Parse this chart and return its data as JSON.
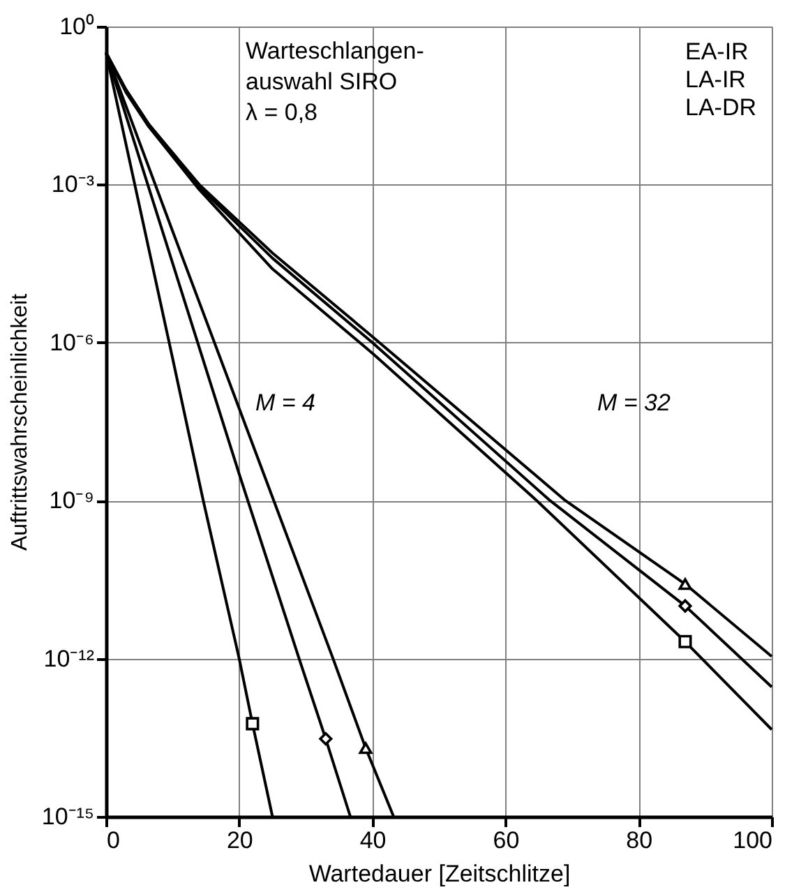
{
  "chart_data": {
    "type": "line",
    "xlabel": "Wartedauer  [Zeitschlitze]",
    "ylabel": "Auftrittswahrscheinlichkeit",
    "log": "y",
    "grid": true,
    "legend": "top right",
    "xlim": [
      0,
      100
    ],
    "xticks": [
      0,
      20,
      40,
      60,
      80,
      100
    ],
    "ylim": [
      1e-15,
      1
    ],
    "yticks": [
      {
        "value": 1,
        "label": "10⁰"
      },
      {
        "value": 0.001,
        "label": "10⁻³"
      },
      {
        "value": 1e-06,
        "label": "10⁻⁶"
      },
      {
        "value": 1e-09,
        "label": "10⁻⁹"
      },
      {
        "value": 1e-12,
        "label": "10⁻¹²"
      },
      {
        "value": 1e-15,
        "label": "10⁻¹⁵"
      }
    ],
    "series": [
      {
        "color": "#000000",
        "x": [
          0,
          10,
          20,
          34.1,
          39,
          43.2
        ],
        "values": [
          0.32,
          0.00013,
          5.6e-08,
          1e-12,
          2e-14,
          1e-15
        ]
      },
      {
        "color": "#000000",
        "x": [
          0,
          10,
          20,
          29,
          33,
          36.7
        ],
        "values": [
          0.32,
          3.2e-05,
          3.2e-09,
          1e-12,
          3e-14,
          1e-15
        ]
      },
      {
        "color": "#000000",
        "x": [
          0,
          10,
          14.6,
          20,
          22,
          25
        ],
        "values": [
          0.32,
          5e-07,
          1e-09,
          1e-12,
          5.8e-14,
          1e-15
        ]
      },
      {
        "color": "#000000",
        "x": [
          0,
          3,
          6.4,
          14,
          25,
          40,
          69,
          87,
          100
        ],
        "values": [
          0.32,
          0.063,
          0.014,
          0.001,
          5e-05,
          1.3e-06,
          1e-09,
          2.6e-11,
          1.1e-12
        ]
      },
      {
        "color": "#000000",
        "x": [
          0,
          3,
          6.4,
          14,
          25,
          40,
          66.7,
          87,
          100
        ],
        "values": [
          0.32,
          0.063,
          0.014,
          0.0009,
          4e-05,
          1e-06,
          1e-09,
          1e-11,
          2.9e-13
        ]
      },
      {
        "color": "#000000",
        "x": [
          0,
          3,
          6.4,
          14,
          25,
          40,
          64.7,
          87,
          100
        ],
        "values": [
          0.32,
          0.056,
          0.0126,
          0.0008,
          2.5e-05,
          6.3e-07,
          1e-09,
          2.1e-12,
          4.5e-14
        ]
      },
      {
        "type": "scatter",
        "name": "EA-IR",
        "color": "#000000",
        "marker": "triangle",
        "x": [
          39,
          87
        ],
        "values": [
          2e-14,
          2.6e-11
        ]
      },
      {
        "type": "scatter",
        "name": "LA-IR",
        "color": "#000000",
        "marker": "diamond",
        "x": [
          33,
          87
        ],
        "values": [
          3e-14,
          1e-11
        ]
      },
      {
        "type": "scatter",
        "name": "LA-DR",
        "color": "#000000",
        "marker": "square",
        "x": [
          22,
          87
        ],
        "values": [
          5.8e-14,
          2.1e-12
        ]
      }
    ],
    "annotations": [
      "Warteschlangen-\nauswahl SIRO",
      "λ = 0,8",
      "M = 4",
      "M = 32"
    ]
  }
}
